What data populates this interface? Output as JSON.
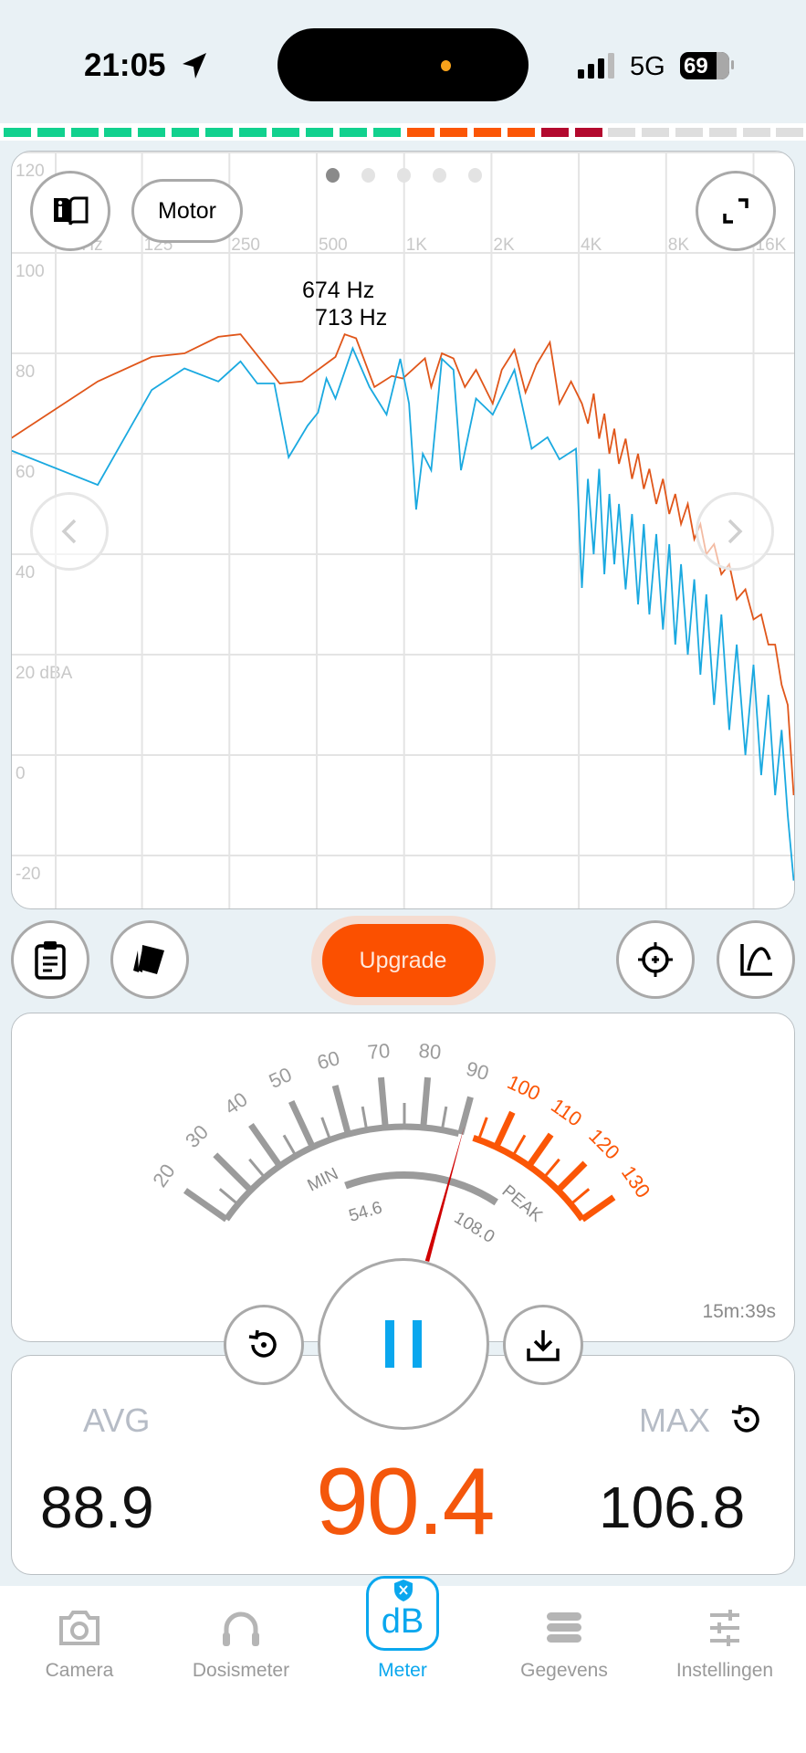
{
  "status_bar": {
    "time": "21:05",
    "network": "5G",
    "battery": "69",
    "icons": [
      "location-arrow-icon",
      "signal-icon",
      "battery-icon"
    ]
  },
  "level_bar": {
    "segments": [
      "green",
      "green",
      "green",
      "green",
      "green",
      "green",
      "green",
      "green",
      "green",
      "green",
      "green",
      "green",
      "orange",
      "orange",
      "orange",
      "orange",
      "red",
      "red",
      "off",
      "off",
      "off",
      "off",
      "off",
      "off"
    ],
    "colors": {
      "green": "#12d18e",
      "orange": "#fb5606",
      "red": "#b3092e",
      "off": "#dedede"
    }
  },
  "chart_controls": {
    "profile_label": "Motor",
    "page_count": 5,
    "active_page": 0
  },
  "chart_data": {
    "type": "line",
    "x_scale": "log",
    "x_ticks": [
      "63 Hz",
      "125",
      "250",
      "500",
      "1K",
      "2K",
      "4K",
      "8K",
      "16K"
    ],
    "x_tick_values": [
      63,
      125,
      250,
      500,
      1000,
      2000,
      4000,
      8000,
      16000
    ],
    "y_ticks": [
      "120",
      "100",
      "80",
      "60",
      "40",
      "20 dBA",
      "0",
      "-20"
    ],
    "y_tick_values": [
      120,
      100,
      80,
      60,
      40,
      20,
      0,
      -20
    ],
    "ylim": [
      -30,
      120
    ],
    "grid": true,
    "annotations": [
      "674 Hz",
      "713 Hz"
    ],
    "colors": {
      "peak": "#e0561a",
      "current": "#1aa9e0"
    },
    "series": [
      {
        "key": "peak",
        "points": [
          [
            44,
            63
          ],
          [
            88,
            74.4
          ],
          [
            135,
            79.3
          ],
          [
            175,
            80
          ],
          [
            229,
            83.3
          ],
          [
            273,
            83.8
          ],
          [
            373,
            74
          ],
          [
            445,
            74.4
          ],
          [
            580,
            79.3
          ],
          [
            624,
            83.8
          ],
          [
            683,
            83
          ],
          [
            790,
            73.3
          ],
          [
            907,
            75.5
          ],
          [
            990,
            75
          ],
          [
            1180,
            79
          ],
          [
            1240,
            73.3
          ],
          [
            1350,
            80
          ],
          [
            1480,
            79
          ],
          [
            1620,
            73.3
          ],
          [
            1770,
            76.7
          ],
          [
            2020,
            70
          ],
          [
            2170,
            76.7
          ],
          [
            2400,
            80.7
          ],
          [
            2620,
            72.2
          ],
          [
            2860,
            77.8
          ],
          [
            3180,
            82.2
          ],
          [
            3430,
            70
          ],
          [
            3760,
            74.4
          ],
          [
            4100,
            70
          ],
          [
            4300,
            66
          ],
          [
            4500,
            72
          ],
          [
            4700,
            63
          ],
          [
            4900,
            68
          ],
          [
            5100,
            60
          ],
          [
            5300,
            65
          ],
          [
            5500,
            58
          ],
          [
            5800,
            63
          ],
          [
            6100,
            55
          ],
          [
            6400,
            60
          ],
          [
            6700,
            53
          ],
          [
            7000,
            57
          ],
          [
            7400,
            50
          ],
          [
            7800,
            55
          ],
          [
            8200,
            48
          ],
          [
            8600,
            52
          ],
          [
            9000,
            46
          ],
          [
            9500,
            50
          ],
          [
            10000,
            43
          ],
          [
            10500,
            46
          ],
          [
            11000,
            40
          ],
          [
            11700,
            42
          ],
          [
            12400,
            36
          ],
          [
            13200,
            38
          ],
          [
            14000,
            31
          ],
          [
            15000,
            33
          ],
          [
            16000,
            27
          ],
          [
            17000,
            28
          ],
          [
            18000,
            22
          ],
          [
            19000,
            22
          ],
          [
            20000,
            14
          ],
          [
            21000,
            10
          ],
          [
            22000,
            -8
          ]
        ]
      },
      {
        "key": "current",
        "points": [
          [
            44,
            60.7
          ],
          [
            88,
            53.8
          ],
          [
            135,
            72.7
          ],
          [
            175,
            77
          ],
          [
            229,
            74.4
          ],
          [
            273,
            78.4
          ],
          [
            312,
            74
          ],
          [
            357,
            74
          ],
          [
            400,
            59.3
          ],
          [
            465,
            65.6
          ],
          [
            505,
            68.2
          ],
          [
            540,
            75
          ],
          [
            580,
            71
          ],
          [
            665,
            81
          ],
          [
            760,
            73.3
          ],
          [
            870,
            67.8
          ],
          [
            970,
            78.9
          ],
          [
            1040,
            70
          ],
          [
            1100,
            48.9
          ],
          [
            1160,
            60
          ],
          [
            1240,
            56.7
          ],
          [
            1350,
            78.9
          ],
          [
            1480,
            76.7
          ],
          [
            1570,
            56.7
          ],
          [
            1770,
            71
          ],
          [
            2020,
            67.8
          ],
          [
            2400,
            76.7
          ],
          [
            2750,
            61
          ],
          [
            3120,
            63.3
          ],
          [
            3430,
            58.9
          ],
          [
            3910,
            61
          ],
          [
            4100,
            33.3
          ],
          [
            4300,
            55
          ],
          [
            4500,
            40
          ],
          [
            4700,
            57
          ],
          [
            4900,
            36
          ],
          [
            5100,
            52
          ],
          [
            5300,
            38
          ],
          [
            5500,
            50
          ],
          [
            5800,
            33
          ],
          [
            6100,
            48
          ],
          [
            6400,
            30
          ],
          [
            6700,
            46
          ],
          [
            7000,
            28
          ],
          [
            7400,
            44
          ],
          [
            7800,
            25
          ],
          [
            8200,
            42
          ],
          [
            8600,
            22
          ],
          [
            9000,
            38
          ],
          [
            9500,
            20
          ],
          [
            10000,
            35
          ],
          [
            10500,
            16
          ],
          [
            11000,
            32
          ],
          [
            11700,
            10
          ],
          [
            12400,
            28
          ],
          [
            13200,
            5
          ],
          [
            14000,
            22
          ],
          [
            15000,
            0
          ],
          [
            16000,
            18
          ],
          [
            17000,
            -4
          ],
          [
            18000,
            12
          ],
          [
            19000,
            -8
          ],
          [
            20000,
            5
          ],
          [
            21000,
            -12
          ],
          [
            22000,
            -25
          ]
        ]
      }
    ]
  },
  "toolbar": {
    "upgrade_label": "Upgrade",
    "upgrade_color": "#fb5000"
  },
  "gauge": {
    "min_db": 20,
    "max_db": 130,
    "labels": [
      "20",
      "30",
      "40",
      "50",
      "60",
      "70",
      "80",
      "90",
      "100",
      "110",
      "120",
      "130"
    ],
    "danger_from": 95,
    "needle_value": 90.4,
    "min_label": "MIN",
    "peak_label": "PEAK",
    "min_value": "54.6",
    "peak_value": "108.0",
    "elapsed": "15m:39s",
    "colors": {
      "scale": "#9b9b9b",
      "danger": "#fb5606",
      "needle": "#d00000"
    }
  },
  "stats": {
    "avg_label": "AVG",
    "avg_value": "88.9",
    "current_value": "90.4",
    "max_label": "MAX",
    "max_value": "106.8"
  },
  "tabs": [
    {
      "label": "Camera",
      "icon": "camera-icon",
      "active": false
    },
    {
      "label": "Dosismeter",
      "icon": "headphones-icon",
      "active": false
    },
    {
      "label": "Meter",
      "icon": "db-meter-icon",
      "active": true
    },
    {
      "label": "Gegevens",
      "icon": "database-icon",
      "active": false
    },
    {
      "label": "Instellingen",
      "icon": "sliders-icon",
      "active": false
    }
  ]
}
